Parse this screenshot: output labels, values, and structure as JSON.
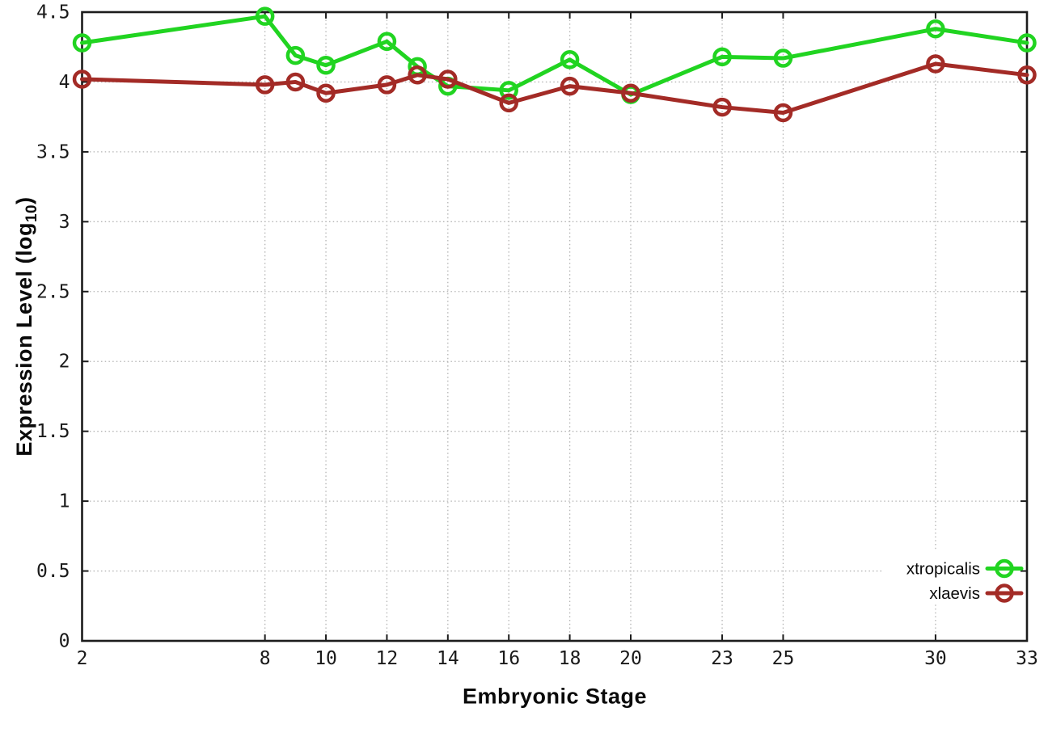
{
  "chart_data": {
    "type": "line",
    "title": "",
    "xlabel": "Embryonic Stage",
    "ylabel": "Expression Level (log10)",
    "ylabel_parts": {
      "prefix": "Expression Level (log",
      "sub": "10",
      "suffix": ")"
    },
    "xlim": [
      2,
      33
    ],
    "ylim": [
      0,
      4.5
    ],
    "grid": true,
    "grid_style": "dotted",
    "legend_position": "bottom-right-inside",
    "x_ticks": [
      2,
      8,
      10,
      12,
      14,
      16,
      18,
      20,
      23,
      25,
      30,
      33
    ],
    "x_tick_labels": [
      "2",
      "8",
      "10",
      "12",
      "14",
      "16",
      "18",
      "20",
      "23",
      "25",
      "30",
      "33"
    ],
    "y_ticks": [
      0,
      0.5,
      1,
      1.5,
      2,
      2.5,
      3,
      3.5,
      4,
      4.5
    ],
    "y_tick_labels": [
      "0",
      "0.5",
      "1",
      "1.5",
      "2",
      "2.5",
      "3",
      "3.5",
      "4",
      "4.5"
    ],
    "x": [
      2,
      8,
      9,
      10,
      12,
      13,
      14,
      16,
      18,
      20,
      23,
      25,
      30,
      33
    ],
    "series": [
      {
        "name": "xtropicalis",
        "color": "#21d421",
        "marker": "open-circle",
        "values": [
          4.28,
          4.47,
          4.19,
          4.12,
          4.29,
          4.11,
          3.97,
          3.94,
          4.16,
          3.91,
          4.18,
          4.17,
          4.38,
          4.28
        ]
      },
      {
        "name": "xlaevis",
        "color": "#a32b26",
        "marker": "open-circle",
        "values": [
          4.02,
          3.98,
          4.0,
          3.92,
          3.98,
          4.05,
          4.02,
          3.85,
          3.97,
          3.92,
          3.82,
          3.78,
          4.13,
          4.05
        ]
      }
    ],
    "frame_color": "#1c1c1c",
    "grid_color": "#b4b4b4",
    "tick_label_color": "#1a1a1a"
  }
}
